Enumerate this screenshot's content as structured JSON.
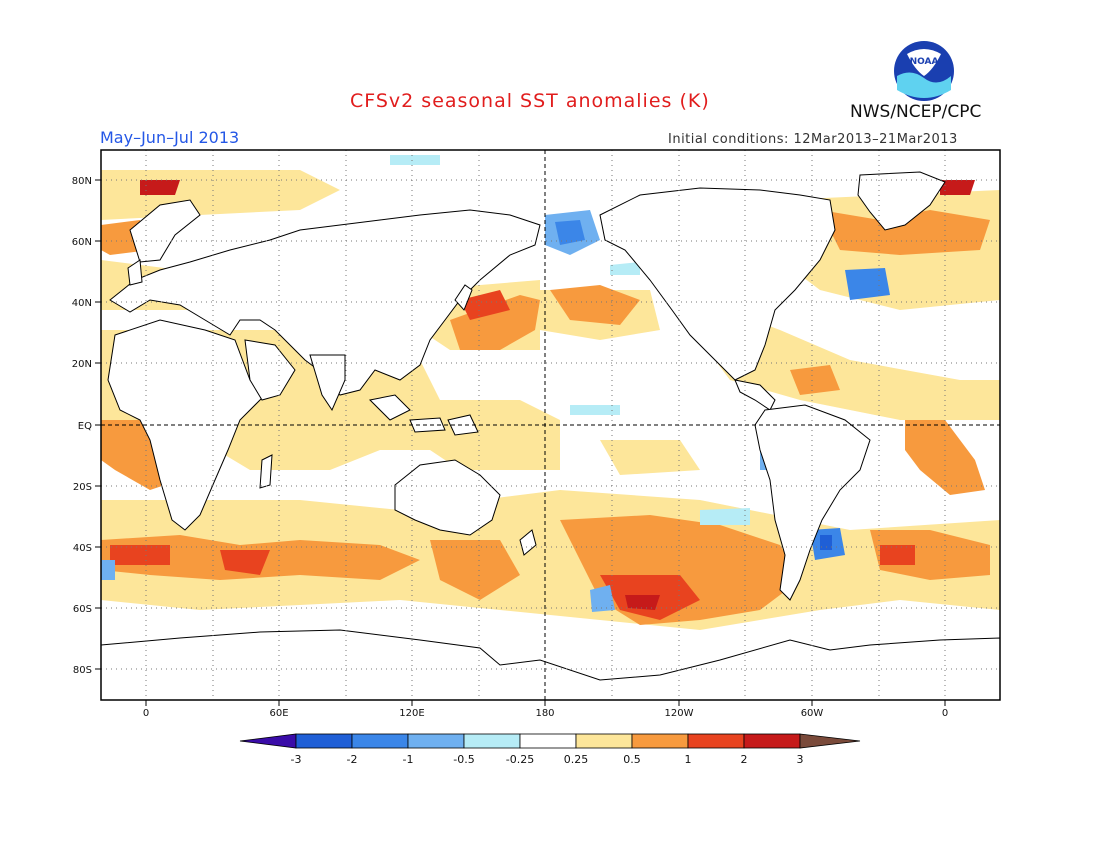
{
  "title": "CFSv2 seasonal SST anomalies (K)",
  "period": "May–Jun–Jul 2013",
  "initial_conditions": "Initial conditions: 12Mar2013–21Mar2013",
  "agency": "NWS/NCEP/CPC",
  "logo_text": "NOAA",
  "lat_labels": [
    "80N",
    "60N",
    "40N",
    "20N",
    "EQ",
    "20S",
    "40S",
    "60S",
    "80S"
  ],
  "lon_labels": [
    "0",
    "60E",
    "120E",
    "180",
    "120W",
    "60W",
    "0"
  ],
  "colorbar": {
    "labels": [
      "-3",
      "-2",
      "-1",
      "-0.5",
      "-0.25",
      "0.25",
      "0.5",
      "1",
      "2",
      "3"
    ],
    "colors": [
      "#3a0ca8",
      "#1f5fd6",
      "#3b86e8",
      "#6fb0f0",
      "#b6ecf6",
      "#ffffff",
      "#fde69a",
      "#f79a3e",
      "#e8431f",
      "#c61a1a",
      "#8a1010",
      "#7a4a3a"
    ]
  }
}
